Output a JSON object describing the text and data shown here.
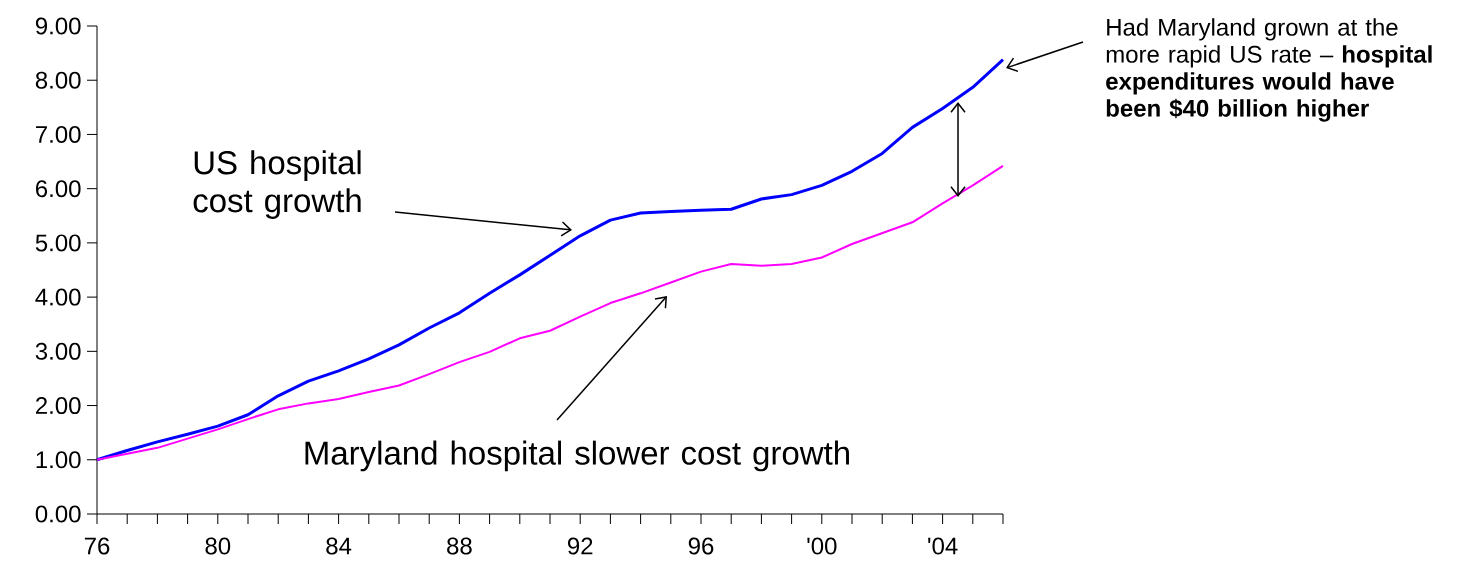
{
  "chart_data": {
    "type": "line",
    "x": [
      1976,
      1977,
      1978,
      1979,
      1980,
      1981,
      1982,
      1983,
      1984,
      1985,
      1986,
      1987,
      1988,
      1989,
      1990,
      1991,
      1992,
      1993,
      1994,
      1995,
      1996,
      1997,
      1998,
      1999,
      2000,
      2001,
      2002,
      2003,
      2004,
      2005,
      2006
    ],
    "series": [
      {
        "color": "#0000ff",
        "values": [
          1.0,
          1.17,
          1.33,
          1.47,
          1.62,
          1.83,
          2.18,
          2.45,
          2.64,
          2.86,
          3.12,
          3.43,
          3.71,
          4.07,
          4.41,
          4.77,
          5.13,
          5.42,
          5.55,
          5.58,
          5.6,
          5.62,
          5.81,
          5.89,
          6.06,
          6.32,
          6.65,
          7.13,
          7.48,
          7.87,
          8.38
        ]
      },
      {
        "color": "#ff00ff",
        "values": [
          1.0,
          1.11,
          1.22,
          1.39,
          1.56,
          1.75,
          1.93,
          2.04,
          2.12,
          2.25,
          2.37,
          2.58,
          2.8,
          2.99,
          3.24,
          3.38,
          3.64,
          3.89,
          4.07,
          4.27,
          4.47,
          4.61,
          4.58,
          4.61,
          4.73,
          4.98,
          5.18,
          5.38,
          5.73,
          6.06,
          6.42
        ]
      }
    ],
    "xlim": [
      1976,
      2006
    ],
    "xticks": [
      {
        "value": 1976,
        "label": "76"
      },
      {
        "value": 1977,
        "label": null
      },
      {
        "value": 1978,
        "label": null
      },
      {
        "value": 1979,
        "label": null
      },
      {
        "value": 1980,
        "label": "80"
      },
      {
        "value": 1981,
        "label": null
      },
      {
        "value": 1982,
        "label": null
      },
      {
        "value": 1983,
        "label": null
      },
      {
        "value": 1984,
        "label": "84"
      },
      {
        "value": 1985,
        "label": null
      },
      {
        "value": 1986,
        "label": null
      },
      {
        "value": 1987,
        "label": null
      },
      {
        "value": 1988,
        "label": "88"
      },
      {
        "value": 1989,
        "label": null
      },
      {
        "value": 1990,
        "label": null
      },
      {
        "value": 1991,
        "label": null
      },
      {
        "value": 1992,
        "label": "92"
      },
      {
        "value": 1993,
        "label": null
      },
      {
        "value": 1994,
        "label": null
      },
      {
        "value": 1995,
        "label": null
      },
      {
        "value": 1996,
        "label": "96"
      },
      {
        "value": 1997,
        "label": null
      },
      {
        "value": 1998,
        "label": null
      },
      {
        "value": 1999,
        "label": null
      },
      {
        "value": 2000,
        "label": "'00"
      },
      {
        "value": 2001,
        "label": null
      },
      {
        "value": 2002,
        "label": null
      },
      {
        "value": 2003,
        "label": null
      },
      {
        "value": 2004,
        "label": "'04"
      },
      {
        "value": 2005,
        "label": null
      },
      {
        "value": 2006,
        "label": null
      }
    ],
    "ylim": [
      0,
      9
    ],
    "yticks": [
      {
        "value": 0,
        "label": "0.00"
      },
      {
        "value": 1,
        "label": "1.00"
      },
      {
        "value": 2,
        "label": "2.00"
      },
      {
        "value": 3,
        "label": "3.00"
      },
      {
        "value": 4,
        "label": "4.00"
      },
      {
        "value": 5,
        "label": "5.00"
      },
      {
        "value": 6,
        "label": "6.00"
      },
      {
        "value": 7,
        "label": "7.00"
      },
      {
        "value": 8,
        "label": "8.00"
      },
      {
        "value": 9,
        "label": "9.00"
      }
    ],
    "annotations": [
      "US hospital cost growth",
      "Maryland hospital slower cost growth",
      "Had Maryland grown at the more rapid US rate – **hospital expenditures would have been $40 billion higher**"
    ]
  }
}
